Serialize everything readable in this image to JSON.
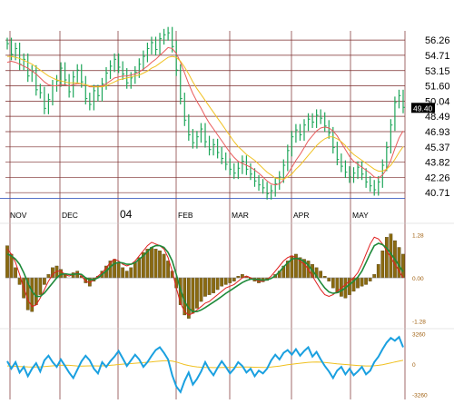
{
  "colors": {
    "background": "#ffffff",
    "grid": "#7a2a2a",
    "price_bar": "#1ea65a",
    "ma_fast": "#e85a5a",
    "ma_slow": "#f0c020",
    "macd_hist": "#8a6a10",
    "macd_line": "#1e8a3a",
    "signal_line": "#e02020",
    "oscillator": "#1aa0e0",
    "oscillator_signal": "#f0c020",
    "axis_text": "#000000",
    "small_text": "#a06010",
    "support_line": "#4060c0",
    "last_price_bg": "#000000",
    "last_price_text": "#ffffff"
  },
  "chart_data": [
    {
      "type": "line",
      "panel": "price",
      "x_labels": [
        "NOV",
        "DEC",
        "04",
        "FEB",
        "MAR",
        "APR",
        "MAY"
      ],
      "y_ticks": [
        "56.26",
        "54.71",
        "53.15",
        "51.60",
        "50.04",
        "48.49",
        "46.93",
        "45.37",
        "43.82",
        "42.26",
        "40.71"
      ],
      "ylim": [
        39.8,
        57.2
      ],
      "last_price_label": "49.40",
      "grid": true,
      "series": [
        {
          "values": [
            55.9,
            54.8,
            55.4,
            53.8,
            54.3,
            52.6,
            53.1,
            51.2,
            50.9,
            49.3,
            50.2,
            51.6,
            52.1,
            53.4,
            52.2,
            51.0,
            52.5,
            53.2,
            52.0,
            50.3,
            49.7,
            51.1,
            50.6,
            51.8,
            52.9,
            53.6,
            54.3,
            53.5,
            52.8,
            51.9,
            52.4,
            53.0,
            53.8,
            54.6,
            55.4,
            56.0,
            55.3,
            56.4,
            56.8,
            57.0,
            55.6,
            53.2,
            50.3,
            48.1,
            46.6,
            45.8,
            46.4,
            47.2,
            45.9,
            45.1,
            45.6,
            44.8,
            44.2,
            43.6,
            43.1,
            42.7,
            43.2,
            43.9,
            43.1,
            42.6,
            41.9,
            41.5,
            41.2,
            40.6,
            40.9,
            41.6,
            42.3,
            43.5,
            45.0,
            46.4,
            47.1,
            46.6,
            47.6,
            48.2,
            47.9,
            48.6,
            48.3,
            47.5,
            46.8,
            45.3,
            44.1,
            43.4,
            42.8,
            42.3,
            42.7,
            43.3,
            42.6,
            41.8,
            41.4,
            41.0,
            41.8,
            43.5,
            45.3,
            47.6,
            49.9,
            50.6,
            49.4
          ]
        },
        {
          "values": [
            54.0,
            54.1,
            54.0,
            53.8,
            53.6,
            53.4,
            53.1,
            52.8,
            52.4,
            52.0,
            51.7,
            51.6,
            51.6,
            51.7,
            51.7,
            51.6,
            51.7,
            51.8,
            51.8,
            51.7,
            51.5,
            51.5,
            51.5,
            51.6,
            51.8,
            52.1,
            52.4,
            52.5,
            52.6,
            52.6,
            52.7,
            52.8,
            53.0,
            53.3,
            53.6,
            54.0,
            54.3,
            54.7,
            55.1,
            55.5,
            55.4,
            54.9,
            54.0,
            52.9,
            51.8,
            50.8,
            50.0,
            49.3,
            48.5,
            47.8,
            47.2,
            46.6,
            46.0,
            45.4,
            44.8,
            44.3,
            43.9,
            43.7,
            43.5,
            43.3,
            43.0,
            42.7,
            42.3,
            41.9,
            41.6,
            41.5,
            41.6,
            42.0,
            42.6,
            43.3,
            44.0,
            44.6,
            45.3,
            46.0,
            46.5,
            47.0,
            47.3,
            47.4,
            47.3,
            47.0,
            46.5,
            45.8,
            45.1,
            44.4,
            43.9,
            43.6,
            43.3,
            43.0,
            42.7,
            42.3,
            42.2,
            42.5,
            43.1,
            44.0,
            45.2,
            46.3,
            47.0
          ]
        },
        {
          "values": [
            54.6,
            54.6,
            54.5,
            54.4,
            54.2,
            54.0,
            53.8,
            53.5,
            53.2,
            52.9,
            52.6,
            52.4,
            52.2,
            52.1,
            52.0,
            51.9,
            51.9,
            51.9,
            51.8,
            51.7,
            51.6,
            51.5,
            51.5,
            51.5,
            51.6,
            51.8,
            52.0,
            52.2,
            52.3,
            52.4,
            52.5,
            52.6,
            52.7,
            52.9,
            53.1,
            53.4,
            53.6,
            53.9,
            54.2,
            54.5,
            54.6,
            54.5,
            54.1,
            53.5,
            52.8,
            52.0,
            51.3,
            50.7,
            50.1,
            49.5,
            48.9,
            48.3,
            47.7,
            47.1,
            46.5,
            45.9,
            45.4,
            45.0,
            44.6,
            44.3,
            44.0,
            43.6,
            43.2,
            42.8,
            42.5,
            42.2,
            42.1,
            42.1,
            42.3,
            42.6,
            43.1,
            43.5,
            44.0,
            44.5,
            45.0,
            45.5,
            45.9,
            46.2,
            46.4,
            46.4,
            46.2,
            45.9,
            45.5,
            45.0,
            44.6,
            44.3,
            44.0,
            43.7,
            43.4,
            43.1,
            42.9,
            42.9,
            43.1,
            43.5,
            44.1,
            44.8,
            45.4
          ]
        }
      ]
    },
    {
      "type": "bar",
      "panel": "macd",
      "y_ticks": [
        "1.28",
        "0.00",
        "-1.28"
      ],
      "ylim": [
        -1.45,
        1.45
      ],
      "series": [
        {
          "values": [
            0.95,
            0.7,
            0.3,
            -0.2,
            -0.6,
            -0.95,
            -1.0,
            -0.8,
            -0.5,
            -0.2,
            0.1,
            0.3,
            0.35,
            0.25,
            0.1,
            0.0,
            0.15,
            0.2,
            0.05,
            -0.15,
            -0.25,
            -0.1,
            0.05,
            0.2,
            0.35,
            0.5,
            0.55,
            0.45,
            0.3,
            0.2,
            0.3,
            0.45,
            0.6,
            0.75,
            0.85,
            0.9,
            0.85,
            0.8,
            0.7,
            0.5,
            0.2,
            -0.3,
            -0.8,
            -1.1,
            -1.2,
            -1.05,
            -0.9,
            -0.7,
            -0.55,
            -0.5,
            -0.45,
            -0.35,
            -0.25,
            -0.2,
            -0.15,
            -0.1,
            0.05,
            0.1,
            0.05,
            -0.05,
            -0.1,
            -0.15,
            -0.12,
            -0.08,
            0.0,
            0.1,
            0.2,
            0.35,
            0.5,
            0.65,
            0.7,
            0.6,
            0.55,
            0.5,
            0.4,
            0.3,
            0.2,
            0.05,
            -0.1,
            -0.3,
            -0.45,
            -0.55,
            -0.6,
            -0.5,
            -0.4,
            -0.3,
            -0.25,
            -0.2,
            -0.1,
            0.1,
            0.4,
            0.8,
            1.2,
            1.3,
            1.1,
            0.9,
            0.7
          ]
        },
        {
          "values": [
            0.85,
            0.7,
            0.45,
            0.1,
            -0.3,
            -0.65,
            -0.85,
            -0.8,
            -0.6,
            -0.35,
            -0.1,
            0.1,
            0.2,
            0.2,
            0.1,
            0.05,
            0.1,
            0.15,
            0.05,
            -0.1,
            -0.15,
            -0.05,
            0.05,
            0.15,
            0.3,
            0.45,
            0.55,
            0.5,
            0.4,
            0.35,
            0.4,
            0.5,
            0.65,
            0.8,
            0.95,
            1.05,
            1.0,
            0.95,
            0.85,
            0.6,
            0.2,
            -0.3,
            -0.75,
            -1.0,
            -1.1,
            -1.05,
            -0.95,
            -0.85,
            -0.75,
            -0.7,
            -0.6,
            -0.5,
            -0.4,
            -0.3,
            -0.25,
            -0.2,
            -0.1,
            0.0,
            0.05,
            0.0,
            -0.05,
            -0.1,
            -0.1,
            -0.05,
            0.05,
            0.2,
            0.35,
            0.5,
            0.6,
            0.65,
            0.6,
            0.5,
            0.4,
            0.25,
            0.05,
            -0.15,
            -0.35,
            -0.5,
            -0.55,
            -0.5,
            -0.4,
            -0.3,
            -0.2,
            -0.1,
            0.0,
            0.15,
            0.4,
            0.7,
            1.0,
            1.2,
            1.15,
            1.0,
            0.8,
            0.6,
            0.4,
            0.2,
            0.0
          ]
        },
        {
          "values": [
            0.7,
            0.65,
            0.55,
            0.4,
            0.15,
            -0.15,
            -0.4,
            -0.55,
            -0.55,
            -0.45,
            -0.3,
            -0.15,
            0.0,
            0.1,
            0.12,
            0.1,
            0.1,
            0.12,
            0.1,
            0.0,
            -0.05,
            -0.05,
            0.0,
            0.1,
            0.2,
            0.32,
            0.42,
            0.46,
            0.44,
            0.4,
            0.4,
            0.45,
            0.55,
            0.65,
            0.78,
            0.9,
            0.95,
            0.95,
            0.9,
            0.75,
            0.5,
            0.1,
            -0.35,
            -0.7,
            -0.9,
            -1.0,
            -1.0,
            -0.95,
            -0.88,
            -0.8,
            -0.72,
            -0.64,
            -0.55,
            -0.46,
            -0.38,
            -0.3,
            -0.22,
            -0.14,
            -0.08,
            -0.04,
            -0.04,
            -0.06,
            -0.07,
            -0.06,
            -0.02,
            0.06,
            0.18,
            0.32,
            0.44,
            0.55,
            0.58,
            0.55,
            0.48,
            0.38,
            0.22,
            0.05,
            -0.14,
            -0.3,
            -0.42,
            -0.46,
            -0.44,
            -0.38,
            -0.3,
            -0.2,
            -0.1,
            0.02,
            0.2,
            0.45,
            0.72,
            0.95,
            1.02,
            0.98,
            0.88,
            0.72,
            0.55,
            0.36,
            0.18
          ]
        }
      ]
    },
    {
      "type": "line",
      "panel": "oscillator",
      "y_ticks": [
        "3260",
        "0",
        "-3260"
      ],
      "ylim": [
        -3600,
        3600
      ],
      "series": [
        {
          "values": [
            300,
            -500,
            200,
            -900,
            -300,
            -1300,
            -500,
            100,
            -800,
            400,
            900,
            200,
            -300,
            500,
            -200,
            -900,
            -1500,
            -600,
            300,
            900,
            400,
            -500,
            -1000,
            200,
            -300,
            300,
            800,
            1400,
            600,
            -200,
            400,
            1000,
            500,
            -300,
            200,
            900,
            1500,
            1800,
            1200,
            500,
            -1200,
            -2400,
            -3000,
            -1800,
            -900,
            -2200,
            -1600,
            -800,
            200,
            -600,
            -1200,
            -400,
            300,
            -300,
            -1000,
            -500,
            200,
            -200,
            -900,
            -500,
            -1300,
            -700,
            -1000,
            -500,
            400,
            1000,
            500,
            1200,
            1500,
            1000,
            1600,
            900,
            1400,
            1800,
            800,
            1300,
            500,
            -200,
            -800,
            -1500,
            -700,
            -300,
            -1100,
            -500,
            -1200,
            -800,
            -300,
            -1100,
            -700,
            200,
            800,
            1600,
            2300,
            2800,
            2500,
            2900,
            1800
          ]
        },
        {
          "values": [
            -200,
            -220,
            -240,
            -260,
            -280,
            -300,
            -310,
            -320,
            -300,
            -270,
            -230,
            -190,
            -160,
            -140,
            -130,
            -140,
            -170,
            -200,
            -210,
            -200,
            -190,
            -190,
            -200,
            -190,
            -170,
            -140,
            -100,
            -50,
            -10,
            20,
            50,
            90,
            130,
            160,
            190,
            230,
            280,
            320,
            350,
            360,
            320,
            220,
            80,
            -60,
            -160,
            -240,
            -300,
            -340,
            -360,
            -370,
            -380,
            -380,
            -370,
            -360,
            -360,
            -350,
            -330,
            -320,
            -320,
            -330,
            -340,
            -350,
            -360,
            -350,
            -320,
            -270,
            -210,
            -150,
            -80,
            -20,
            40,
            90,
            140,
            180,
            200,
            210,
            200,
            170,
            130,
            80,
            30,
            -10,
            -50,
            -90,
            -130,
            -160,
            -180,
            -200,
            -200,
            -180,
            -140,
            -70,
            20,
            120,
            220,
            320,
            400
          ]
        }
      ]
    }
  ]
}
